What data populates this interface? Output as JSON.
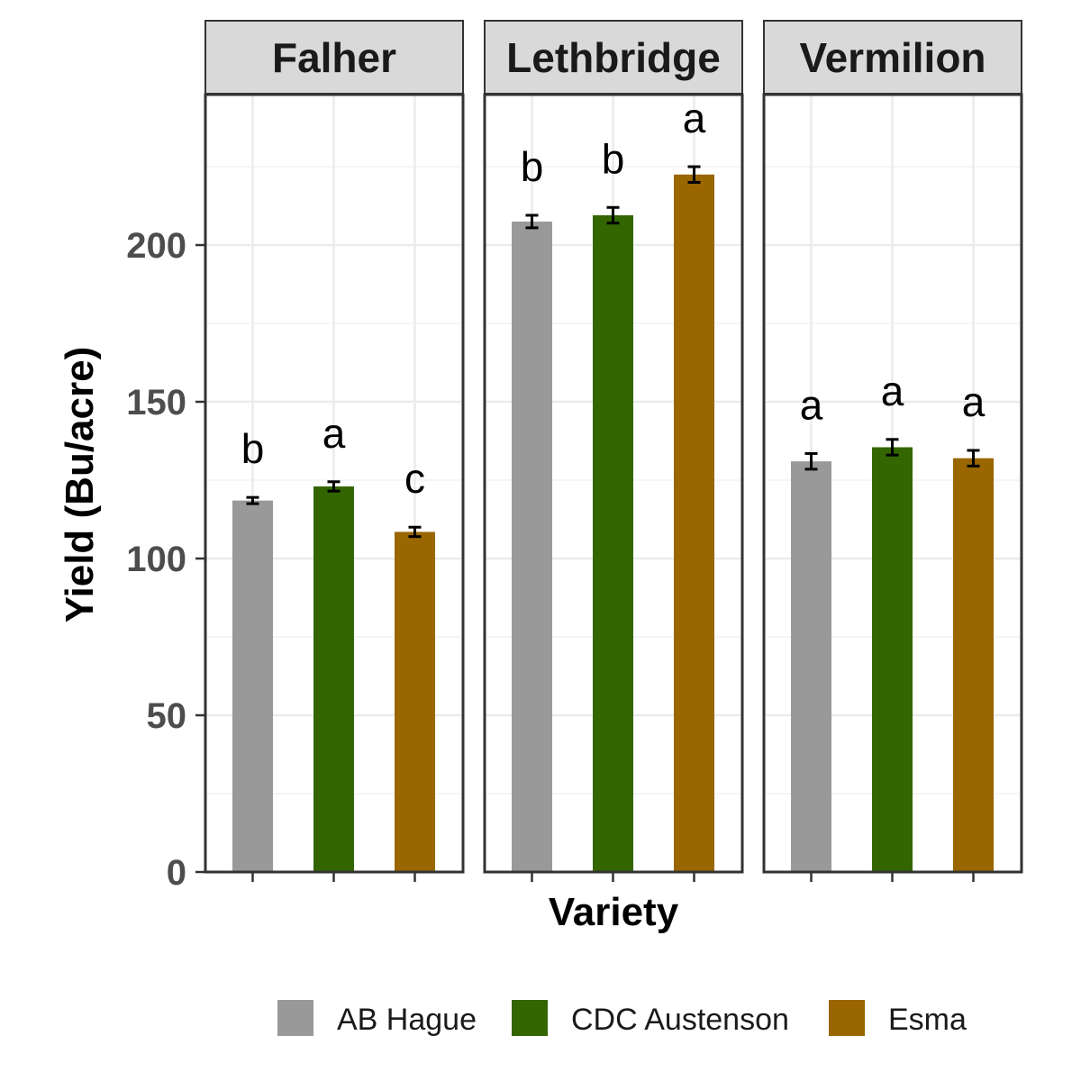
{
  "chart_data": {
    "type": "bar",
    "facets": [
      "Falher",
      "Lethbridge",
      "Vermilion"
    ],
    "categories": [
      "AB Hague",
      "CDC Austenson",
      "Esma"
    ],
    "series": [
      {
        "facet": "Falher",
        "values": [
          118.5,
          123,
          108.5
        ],
        "errors": [
          1.0,
          1.5,
          1.5
        ],
        "letters": [
          "b",
          "a",
          "c"
        ]
      },
      {
        "facet": "Lethbridge",
        "values": [
          207.5,
          209.5,
          222.5
        ],
        "errors": [
          2.0,
          2.5,
          2.5
        ],
        "letters": [
          "b",
          "b",
          "a"
        ]
      },
      {
        "facet": "Vermilion",
        "values": [
          131,
          135.5,
          132
        ],
        "errors": [
          2.5,
          2.5,
          2.5
        ],
        "letters": [
          "a",
          "a",
          "a"
        ]
      }
    ],
    "colors": [
      "#999999",
      "#336600",
      "#996600"
    ],
    "xlabel": "Variety",
    "ylabel": "Yield (Bu/acre)",
    "ylim": [
      0,
      248
    ],
    "yticks": [
      0,
      50,
      100,
      150,
      200
    ],
    "ytick_labels": [
      "0",
      "50",
      "100",
      "150",
      "200"
    ],
    "legend": {
      "position": "bottom",
      "labels": [
        "AB Hague",
        "CDC Austenson",
        "Esma"
      ]
    },
    "grid": true
  }
}
